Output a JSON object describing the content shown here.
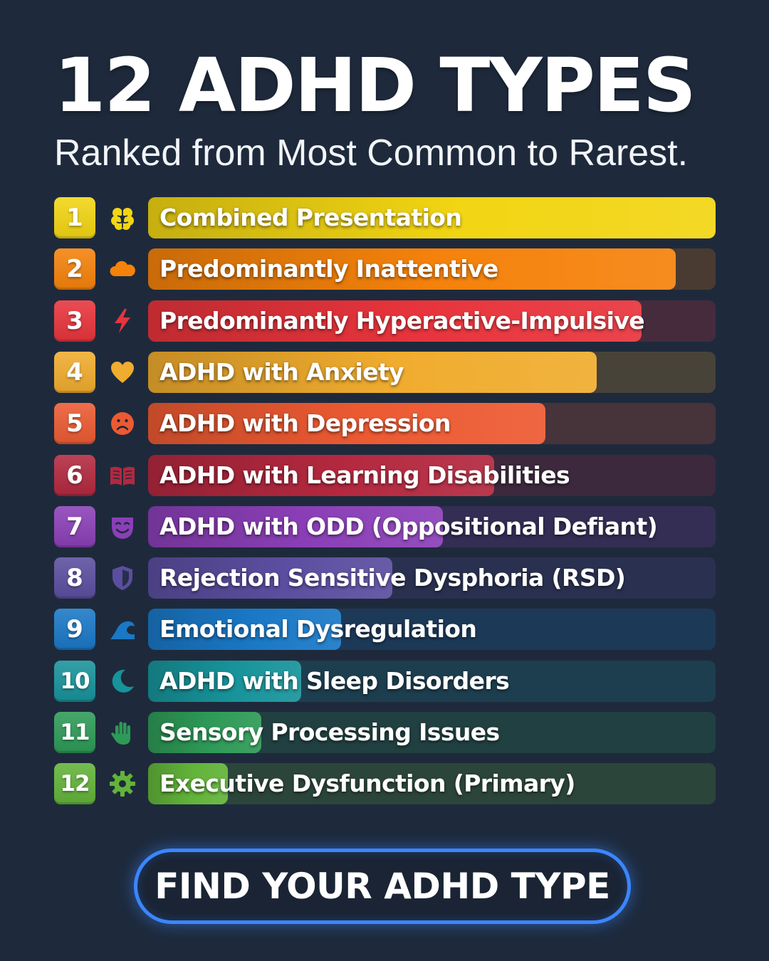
{
  "header": {
    "title": "12 ADHD TYPES",
    "subtitle": "Ranked from Most Common to Rarest."
  },
  "chart_data": {
    "type": "bar",
    "orientation": "horizontal",
    "title": "12 ADHD TYPES",
    "subtitle": "Ranked from Most Common to Rarest.",
    "xlim": [
      0,
      100
    ],
    "grid": false,
    "categories": [
      "Combined Presentation",
      "Predominantly Inattentive",
      "Predominantly Hyperactive-Impulsive",
      "ADHD with Anxiety",
      "ADHD with Depression",
      "ADHD with Learning Disabilities",
      "ADHD with ODD (Oppositional Defiant)",
      "Rejection Sensitive Dysphoria (RSD)",
      "Emotional Dysregulation",
      "ADHD with Sleep Disorders",
      "Sensory Processing Issues",
      "Executive Dysfunction (Primary)"
    ],
    "ranks": [
      "1",
      "2",
      "3",
      "4",
      "5",
      "6",
      "7",
      "8",
      "9",
      "10",
      "11",
      "12"
    ],
    "values": [
      100,
      93,
      87,
      79,
      70,
      61,
      52,
      43,
      34,
      27,
      20,
      14
    ],
    "colors": [
      "#f2d513",
      "#f5820b",
      "#e8343c",
      "#f0ac2e",
      "#ec5a32",
      "#b3283f",
      "#8b3fb7",
      "#5b4ea0",
      "#1a78c6",
      "#17939a",
      "#2e9a57",
      "#62b339"
    ],
    "icons": [
      "brain-icon",
      "cloud-icon",
      "lightning-icon",
      "heart-icon",
      "sad-face-icon",
      "book-icon",
      "drama-mask-icon",
      "shield-icon",
      "wave-icon",
      "moon-icon",
      "hand-icon",
      "gear-icon"
    ]
  },
  "cta": {
    "label": "FIND YOUR ADHD TYPE"
  }
}
